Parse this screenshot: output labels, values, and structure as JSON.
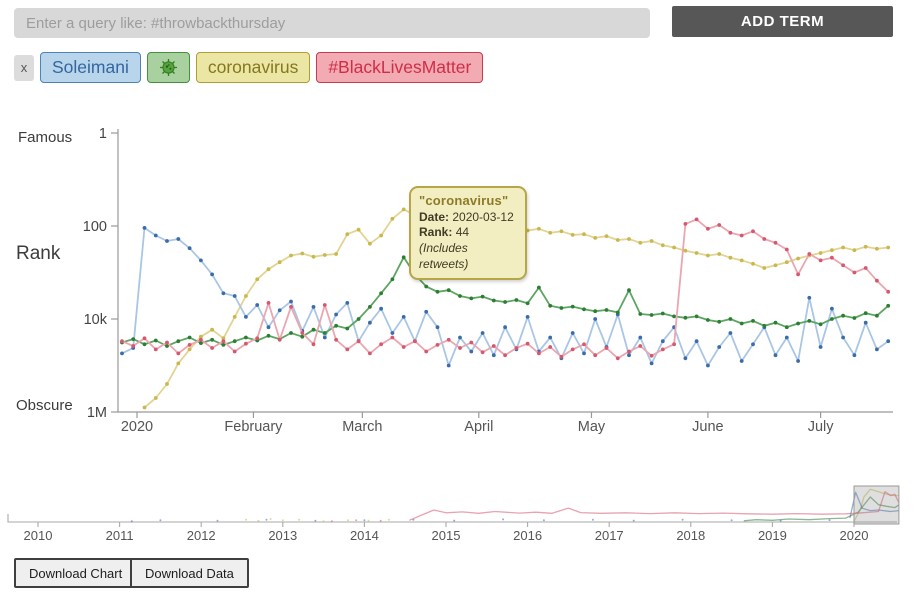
{
  "header": {
    "search_placeholder": "Enter a query like: #throwbackthursday",
    "add_term_label": "ADD TERM"
  },
  "terms_bar": {
    "clear_label": "x",
    "terms": [
      {
        "label": "Soleimani",
        "colors": {
          "bg": "#b9d5ec",
          "border": "#4d83b5",
          "text": "#33679e"
        }
      },
      {
        "label": "",
        "icon": "microbe-icon",
        "colors": {
          "bg": "#a8d19f",
          "border": "#44913c",
          "text": "#2f7d1f"
        }
      },
      {
        "label": "coronavirus",
        "colors": {
          "bg": "#ece6a4",
          "border": "#af9f33",
          "text": "#83771f"
        }
      },
      {
        "label": "#BlackLivesMatter",
        "colors": {
          "bg": "#f2aab3",
          "border": "#c63a50",
          "text": "#d02e48"
        }
      }
    ]
  },
  "chart": {
    "y_axis_words": {
      "top": "Famous",
      "mid": "Rank",
      "bottom": "Obscure"
    },
    "tooltip": {
      "title": "\"coronavirus\"",
      "date_label": "Date:",
      "date_value": "2020-03-12",
      "rank_label": "Rank:",
      "rank_value": "44",
      "note": "(Includes retweets)"
    }
  },
  "chart_data": {
    "type": "line",
    "y_axis": {
      "scale": "log",
      "orientation": "rank 1 at top, 1M at bottom",
      "ticks": [
        {
          "label": "1",
          "rank": 1
        },
        {
          "label": "100",
          "rank": 100
        },
        {
          "label": "10k",
          "rank": 10000
        },
        {
          "label": "1M",
          "rank": 1000000
        }
      ]
    },
    "x_axis": {
      "epoch": "2020-01-01",
      "ticks": [
        {
          "label": "2020",
          "day": 0
        },
        {
          "label": "February",
          "day": 31
        },
        {
          "label": "March",
          "day": 60
        },
        {
          "label": "April",
          "day": 91
        },
        {
          "label": "May",
          "day": 121
        },
        {
          "label": "June",
          "day": 152
        },
        {
          "label": "July",
          "day": 182
        }
      ]
    },
    "sampling_note": "estimated ranks at 3-day intervals, day offsets relative to 2020-01-01",
    "start_day": -4,
    "step_days": 3,
    "highlight": {
      "series": "coronavirus",
      "date": "2020-03-12",
      "rank": 44
    },
    "series": [
      {
        "name": "coronavirus",
        "color": "#c9b84d",
        "line_color": "#e2d493",
        "values": [
          null,
          null,
          800000,
          500000,
          250000,
          90000,
          45000,
          24000,
          17000,
          26000,
          9000,
          3200,
          1400,
          850,
          600,
          430,
          390,
          460,
          420,
          400,
          150,
          120,
          240,
          160,
          70,
          44,
          58,
          52,
          70,
          64,
          80,
          75,
          95,
          88,
          110,
          100,
          125,
          115,
          140,
          130,
          155,
          150,
          180,
          165,
          200,
          190,
          230,
          210,
          260,
          290,
          340,
          380,
          430,
          400,
          480,
          550,
          650,
          800,
          700,
          600,
          500,
          430,
          380,
          330,
          290,
          330,
          280,
          310,
          290
        ]
      },
      {
        "name": "Soleimani",
        "color": "#3a6cab",
        "line_color": "#a9c6e5",
        "values": [
          55000,
          42000,
          110,
          160,
          210,
          190,
          300,
          550,
          1100,
          2800,
          3200,
          9000,
          5000,
          15000,
          6500,
          4200,
          18000,
          5500,
          25000,
          8000,
          4500,
          30000,
          12000,
          6000,
          20000,
          9000,
          30000,
          7000,
          15000,
          100000,
          25000,
          50000,
          20000,
          60000,
          15000,
          45000,
          9000,
          50000,
          25000,
          70000,
          20000,
          55000,
          10000,
          40000,
          8000,
          60000,
          25000,
          90000,
          30000,
          15000,
          70000,
          30000,
          100000,
          40000,
          20000,
          80000,
          35000,
          15000,
          60000,
          25000,
          80000,
          3500,
          40000,
          6000,
          25000,
          60000,
          12000,
          45000,
          30000
        ]
      },
      {
        "name": "virus-emoji",
        "color": "#2e7d35",
        "line_color": "#5ca661",
        "values": [
          32000,
          27000,
          35000,
          29000,
          38000,
          30000,
          25000,
          33000,
          28000,
          36000,
          30000,
          25000,
          29000,
          23000,
          27000,
          20000,
          24000,
          17000,
          20000,
          14000,
          16000,
          10000,
          5500,
          2800,
          1400,
          470,
          1100,
          2000,
          2600,
          2400,
          3200,
          3600,
          3300,
          4000,
          4300,
          3900,
          4600,
          2100,
          5200,
          5800,
          5400,
          6200,
          6800,
          6400,
          7200,
          2400,
          7800,
          8200,
          7600,
          8800,
          9400,
          8800,
          10500,
          11500,
          10000,
          12500,
          11000,
          14000,
          12000,
          15000,
          12500,
          11000,
          13000,
          10000,
          8500,
          9500,
          7500,
          8500,
          5200
        ]
      },
      {
        "name": "#BlackLivesMatter",
        "color": "#d5586f",
        "line_color": "#eba6af",
        "values": [
          30000,
          38000,
          26000,
          45000,
          32000,
          55000,
          36000,
          28000,
          42000,
          30000,
          50000,
          34000,
          26000,
          4500,
          28000,
          5500,
          20000,
          35000,
          5000,
          28000,
          45000,
          30000,
          55000,
          35000,
          25000,
          40000,
          30000,
          50000,
          36000,
          28000,
          42000,
          32000,
          52000,
          38000,
          60000,
          42000,
          34000,
          55000,
          40000,
          65000,
          45000,
          35000,
          60000,
          42000,
          70000,
          50000,
          38000,
          62000,
          45000,
          35000,
          90,
          72,
          115,
          95,
          140,
          160,
          130,
          190,
          230,
          320,
          1100,
          400,
          550,
          480,
          700,
          1000,
          800,
          1500,
          2600
        ]
      }
    ],
    "mini": {
      "x_start_year": 2009.55,
      "x_end_year": 2020.6,
      "year_labels": [
        "2010",
        "2011",
        "2012",
        "2013",
        "2014",
        "2015",
        "2016",
        "2017",
        "2018",
        "2019",
        "2020"
      ],
      "brush_year_range": [
        2020.0,
        2020.55
      ],
      "series": [
        {
          "name": "coronavirus",
          "dots": [
            [
              2012.55,
              500000
            ],
            [
              2012.7,
              700000
            ],
            [
              2012.85,
              400000
            ],
            [
              2013.0,
              600000
            ],
            [
              2013.2,
              500000
            ],
            [
              2013.5,
              800000
            ],
            [
              2013.8,
              600000
            ],
            [
              2014.05,
              700000
            ],
            [
              2014.3,
              500000
            ]
          ],
          "line": [
            [
              2020.0,
              800000
            ],
            [
              2020.08,
              20000
            ],
            [
              2020.12,
              500
            ],
            [
              2020.2,
              44
            ],
            [
              2020.3,
              90
            ],
            [
              2020.4,
              200
            ],
            [
              2020.5,
              300
            ],
            [
              2020.55,
              290
            ]
          ]
        },
        {
          "name": "Soleimani",
          "dots": [
            [
              2011.15,
              800000
            ],
            [
              2011.5,
              600000
            ],
            [
              2012.2,
              700000
            ],
            [
              2012.8,
              500000
            ],
            [
              2013.4,
              700000
            ],
            [
              2014.0,
              600000
            ],
            [
              2014.6,
              500000
            ],
            [
              2015.1,
              650000
            ],
            [
              2015.7,
              450000
            ],
            [
              2016.2,
              600000
            ],
            [
              2016.8,
              500000
            ],
            [
              2017.3,
              650000
            ],
            [
              2017.9,
              500000
            ],
            [
              2018.5,
              600000
            ],
            [
              2019.1,
              700000
            ],
            [
              2019.7,
              550000
            ]
          ],
          "line": [
            [
              2019.95,
              300000
            ],
            [
              2020.02,
              110
            ],
            [
              2020.1,
              15000
            ],
            [
              2020.2,
              30000
            ],
            [
              2020.3,
              25000
            ],
            [
              2020.45,
              40000
            ],
            [
              2020.55,
              30000
            ]
          ]
        },
        {
          "name": "virus-emoji",
          "dots": [],
          "line": [
            [
              2018.65,
              700000
            ],
            [
              2018.8,
              500000
            ],
            [
              2019.0,
              600000
            ],
            [
              2019.2,
              400000
            ],
            [
              2019.45,
              500000
            ],
            [
              2019.7,
              350000
            ],
            [
              2019.9,
              300000
            ],
            [
              2020.05,
              50000
            ],
            [
              2020.2,
              470
            ],
            [
              2020.3,
              5000
            ],
            [
              2020.4,
              8000
            ],
            [
              2020.5,
              12000
            ],
            [
              2020.55,
              5200
            ]
          ]
        },
        {
          "name": "#BlackLivesMatter",
          "dots": [
            [
              2013.6,
              800000
            ],
            [
              2013.9,
              600000
            ],
            [
              2014.2,
              700000
            ]
          ],
          "line": [
            [
              2014.55,
              600000
            ],
            [
              2014.7,
              120000
            ],
            [
              2014.85,
              25000
            ],
            [
              2015.0,
              60000
            ],
            [
              2015.2,
              45000
            ],
            [
              2015.4,
              70000
            ],
            [
              2015.6,
              40000
            ],
            [
              2015.9,
              65000
            ],
            [
              2016.1,
              50000
            ],
            [
              2016.3,
              70000
            ],
            [
              2016.5,
              14000
            ],
            [
              2016.65,
              55000
            ],
            [
              2016.9,
              70000
            ],
            [
              2017.2,
              60000
            ],
            [
              2017.5,
              75000
            ],
            [
              2017.8,
              60000
            ],
            [
              2018.1,
              75000
            ],
            [
              2018.4,
              65000
            ],
            [
              2018.7,
              80000
            ],
            [
              2019.0,
              90000
            ],
            [
              2019.3,
              75000
            ],
            [
              2019.6,
              90000
            ],
            [
              2019.9,
              80000
            ],
            [
              2020.1,
              60000
            ],
            [
              2020.3,
              40000
            ],
            [
              2020.38,
              90
            ],
            [
              2020.45,
              300
            ],
            [
              2020.5,
              200
            ],
            [
              2020.55,
              2600
            ]
          ]
        }
      ]
    }
  },
  "footer": {
    "download_chart_label": "Download Chart",
    "download_data_label": "Download Data"
  }
}
